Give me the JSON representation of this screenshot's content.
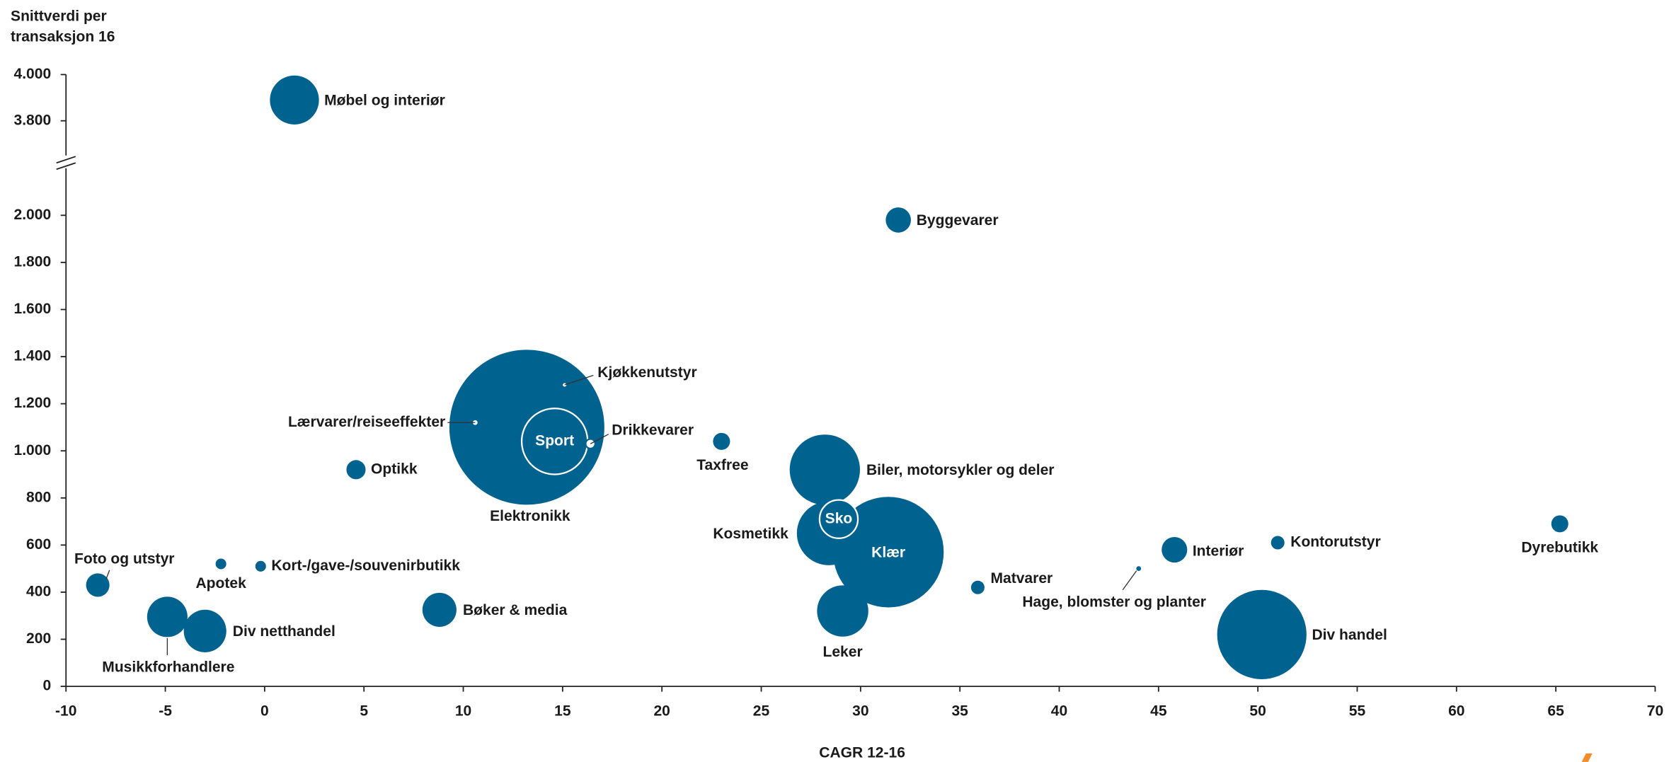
{
  "chart_data": {
    "type": "bubble",
    "y_label": [
      "Snittverdi per",
      "transaksjon 16"
    ],
    "x_label": "CAGR 12-16",
    "color": "#00628f",
    "xlim": [
      -10,
      70
    ],
    "xticks": [
      -10,
      -5,
      0,
      5,
      10,
      15,
      20,
      25,
      30,
      35,
      40,
      45,
      50,
      55,
      60,
      65,
      70
    ],
    "ylim": [
      0,
      4000
    ],
    "ybreak": [
      2200,
      3650
    ],
    "yticks": [
      0,
      200,
      400,
      600,
      800,
      {
        "value": 1000,
        "label": "1.000"
      },
      {
        "value": 1200,
        "label": "1.200"
      },
      {
        "value": 1400,
        "label": "1.400"
      },
      {
        "value": 1600,
        "label": "1.600"
      },
      {
        "value": 1800,
        "label": "1.800"
      },
      {
        "value": 2000,
        "label": "2.000"
      },
      {
        "value": 3800,
        "label": "3.800"
      },
      {
        "value": 4000,
        "label": "4.000"
      }
    ],
    "points": [
      {
        "label": "Elektronikk",
        "x": 13.2,
        "y": 1100,
        "size": 5300
      },
      {
        "label": "Sport",
        "x": 14.6,
        "y": 1040,
        "size": 960
      },
      {
        "label": "Kjøkkenutstyr",
        "x": 15.1,
        "y": 1280,
        "size": 6
      },
      {
        "label": "Lærvarer/reiseeffekter",
        "x": 10.6,
        "y": 1120,
        "size": 9
      },
      {
        "label": "Drikkevarer",
        "x": 16.4,
        "y": 1030,
        "size": 20
      },
      {
        "label": "Møbel og interiør",
        "x": 1.5,
        "y": 3890,
        "size": 530
      },
      {
        "label": "Byggevarer",
        "x": 31.9,
        "y": 1980,
        "size": 140
      },
      {
        "label": "Taxfree",
        "x": 23.0,
        "y": 1040,
        "size": 64
      },
      {
        "label": "Optikk",
        "x": 4.6,
        "y": 920,
        "size": 81
      },
      {
        "label": "Biler, motorsykler og deler",
        "x": 28.2,
        "y": 920,
        "size": 1090
      },
      {
        "label": "Kosmetikk",
        "x": 28.4,
        "y": 650,
        "size": 900
      },
      {
        "label": "Klær",
        "x": 31.4,
        "y": 570,
        "size": 2700
      },
      {
        "label": "Sko",
        "x": 28.9,
        "y": 710,
        "size": 324
      },
      {
        "label": "Leker",
        "x": 29.1,
        "y": 320,
        "size": 580
      },
      {
        "label": "Matvarer",
        "x": 35.9,
        "y": 420,
        "size": 40
      },
      {
        "label": "Hage, blomster og planter",
        "x": 44.0,
        "y": 500,
        "size": 5
      },
      {
        "label": "Interiør",
        "x": 45.8,
        "y": 580,
        "size": 144
      },
      {
        "label": "Kontorutstyr",
        "x": 51.0,
        "y": 610,
        "size": 40
      },
      {
        "label": "Dyrebutikk",
        "x": 65.2,
        "y": 690,
        "size": 64
      },
      {
        "label": "Div handel",
        "x": 50.2,
        "y": 220,
        "size": 1760
      },
      {
        "label": "Foto og utstyr",
        "x": -8.4,
        "y": 430,
        "size": 121
      },
      {
        "label": "Apotek",
        "x": -2.2,
        "y": 520,
        "size": 25
      },
      {
        "label": "Kort-/gave-/souvenirbutikk",
        "x": -0.2,
        "y": 510,
        "size": 25
      },
      {
        "label": "Musikkforhandlere",
        "x": -4.9,
        "y": 295,
        "size": 360
      },
      {
        "label": "Div netthandel",
        "x": -3.0,
        "y": 235,
        "size": 400
      },
      {
        "label": "Bøker & media",
        "x": 8.8,
        "y": 325,
        "size": 256
      }
    ]
  }
}
